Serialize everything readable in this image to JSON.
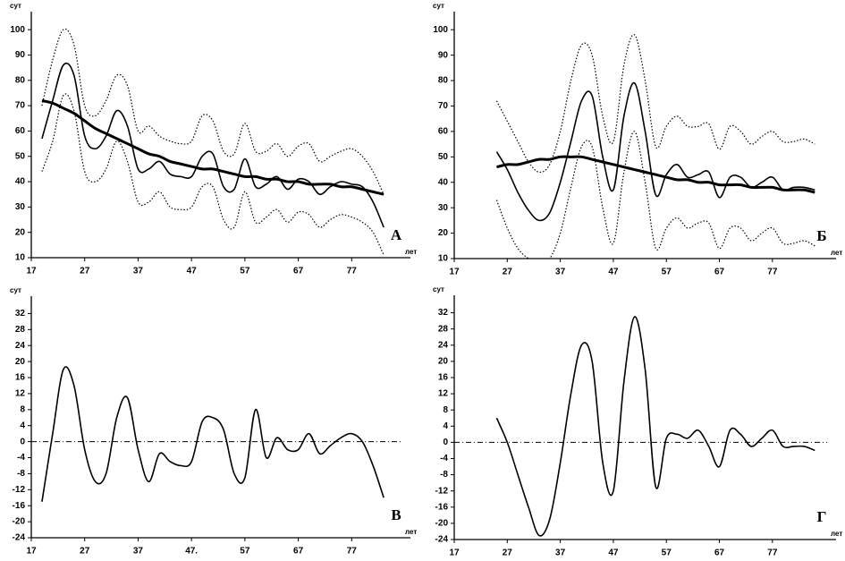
{
  "chart_data": [
    {
      "type": "line",
      "label": "А",
      "y_label": "сут",
      "x_label": "лет",
      "xlim": [
        17,
        88
      ],
      "xticks": [
        17,
        27,
        37,
        47,
        57,
        67,
        77
      ],
      "ylim": [
        10,
        105
      ],
      "yticks": [
        10,
        20,
        30,
        40,
        50,
        60,
        70,
        80,
        90,
        100
      ],
      "x": [
        19,
        21,
        23,
        25,
        27,
        29,
        31,
        33,
        35,
        37,
        39,
        41,
        43,
        45,
        47,
        49,
        51,
        53,
        55,
        57,
        59,
        61,
        63,
        65,
        67,
        69,
        71,
        73,
        75,
        77,
        79,
        81,
        83
      ],
      "series": [
        {
          "style": "dotted",
          "color": "#000",
          "values": [
            70,
            88,
            100,
            94,
            70,
            66,
            72,
            82,
            78,
            60,
            62,
            58,
            56,
            55,
            56,
            66,
            64,
            52,
            51,
            63,
            52,
            52,
            55,
            50,
            54,
            55,
            48,
            50,
            52,
            53,
            50,
            44,
            35
          ]
        },
        {
          "style": "dotted",
          "color": "#000",
          "values": [
            44,
            56,
            74,
            68,
            44,
            40,
            45,
            56,
            48,
            32,
            32,
            36,
            30,
            29,
            30,
            38,
            38,
            25,
            22,
            36,
            24,
            26,
            29,
            24,
            28,
            27,
            22,
            25,
            27,
            26,
            24,
            20,
            11
          ]
        },
        {
          "style": "solid",
          "color": "#000",
          "values": [
            57,
            72,
            86,
            82,
            58,
            53,
            58,
            68,
            62,
            45,
            45,
            48,
            43,
            42,
            42,
            50,
            51,
            38,
            37,
            49,
            38,
            39,
            42,
            37,
            41,
            40,
            35,
            38,
            40,
            39,
            38,
            32,
            22
          ]
        },
        {
          "style": "bold",
          "color": "#000",
          "values": [
            72,
            71,
            69,
            67,
            64,
            61,
            59,
            57,
            55,
            53,
            51,
            50,
            48,
            47,
            46,
            45,
            45,
            44,
            43,
            42,
            42,
            41,
            41,
            40,
            40,
            39,
            39,
            39,
            38,
            38,
            37,
            36,
            35
          ]
        }
      ]
    },
    {
      "type": "line",
      "label": "Б",
      "y_label": "сут",
      "x_label": "лет",
      "xlim": [
        17,
        89
      ],
      "xticks": [
        17,
        27,
        37,
        47,
        57,
        67,
        77
      ],
      "ylim": [
        10,
        105
      ],
      "yticks": [
        10,
        20,
        30,
        40,
        50,
        60,
        70,
        80,
        90,
        100
      ],
      "x": [
        25,
        27,
        29,
        31,
        33,
        35,
        37,
        39,
        41,
        43,
        45,
        47,
        49,
        51,
        53,
        55,
        57,
        59,
        61,
        63,
        65,
        67,
        69,
        71,
        73,
        75,
        77,
        79,
        81,
        83,
        85
      ],
      "series": [
        {
          "style": "dotted",
          "color": "#000",
          "values": [
            72,
            64,
            56,
            48,
            44,
            47,
            60,
            80,
            94,
            90,
            66,
            56,
            86,
            98,
            80,
            54,
            62,
            66,
            62,
            62,
            63,
            53,
            62,
            60,
            55,
            58,
            60,
            56,
            56,
            57,
            55
          ]
        },
        {
          "style": "dotted",
          "color": "#000",
          "values": [
            33,
            22,
            14,
            10,
            8,
            10,
            20,
            38,
            54,
            54,
            30,
            16,
            44,
            60,
            40,
            14,
            22,
            26,
            22,
            24,
            24,
            14,
            22,
            22,
            17,
            20,
            22,
            16,
            16,
            17,
            15
          ]
        },
        {
          "style": "solid",
          "color": "#000",
          "values": [
            52,
            45,
            36,
            29,
            25,
            28,
            40,
            56,
            72,
            74,
            50,
            37,
            66,
            79,
            60,
            35,
            43,
            47,
            42,
            43,
            44,
            34,
            42,
            42,
            38,
            40,
            42,
            37,
            38,
            38,
            37
          ]
        },
        {
          "style": "bold",
          "color": "#000",
          "values": [
            46,
            47,
            47,
            48,
            49,
            49,
            50,
            50,
            50,
            49,
            48,
            47,
            46,
            45,
            44,
            43,
            42,
            41,
            41,
            40,
            40,
            39,
            39,
            39,
            38,
            38,
            38,
            37,
            37,
            37,
            36
          ]
        }
      ]
    },
    {
      "type": "line",
      "label": "В",
      "y_label": "сут",
      "x_label": "лет",
      "xlim": [
        17,
        88
      ],
      "xticks": [
        17,
        27,
        37,
        {
          "value": 47,
          "label": "47."
        },
        57,
        67,
        77
      ],
      "ylim": [
        -24,
        35
      ],
      "yticks": [
        -24,
        -20,
        -16,
        -12,
        -8,
        -4,
        0,
        4,
        8,
        12,
        16,
        20,
        24,
        28,
        32
      ],
      "x": [
        19,
        21,
        23,
        25,
        27,
        29,
        31,
        33,
        35,
        37,
        39,
        41,
        43,
        45,
        47,
        49,
        51,
        53,
        55,
        57,
        59,
        61,
        63,
        65,
        67,
        69,
        71,
        73,
        75,
        77,
        79,
        81,
        83
      ],
      "series": [
        {
          "style": "solid",
          "color": "#000",
          "values": [
            -15,
            2,
            18,
            14,
            -2,
            -10,
            -8,
            6,
            11,
            -2,
            -10,
            -3,
            -5,
            -6,
            -5,
            5,
            6,
            3,
            -8,
            -9,
            8,
            -4,
            1,
            -2,
            -2,
            2,
            -3,
            -1,
            1,
            2,
            0,
            -6,
            -14
          ]
        }
      ]
    },
    {
      "type": "line",
      "label": "Г",
      "y_label": "сут",
      "x_label": "лет",
      "xlim": [
        17,
        89
      ],
      "xticks": [
        17,
        27,
        37,
        47,
        57,
        67,
        77
      ],
      "ylim": [
        -24,
        35
      ],
      "yticks": [
        -24,
        -20,
        -16,
        -12,
        -8,
        -4,
        0,
        4,
        8,
        12,
        16,
        20,
        24,
        28,
        32
      ],
      "x": [
        25,
        27,
        29,
        31,
        33,
        35,
        37,
        39,
        41,
        43,
        45,
        47,
        49,
        51,
        53,
        55,
        57,
        59,
        61,
        63,
        65,
        67,
        69,
        71,
        73,
        75,
        77,
        79,
        81,
        83,
        85
      ],
      "series": [
        {
          "style": "solid",
          "color": "#000",
          "values": [
            6,
            0,
            -8,
            -16,
            -23,
            -19,
            -5,
            12,
            24,
            20,
            -5,
            -12,
            15,
            31,
            18,
            -11,
            1,
            2,
            1,
            3,
            -1,
            -6,
            3,
            2,
            -1,
            1,
            3,
            -1,
            -1,
            -1,
            -2
          ]
        }
      ]
    }
  ]
}
